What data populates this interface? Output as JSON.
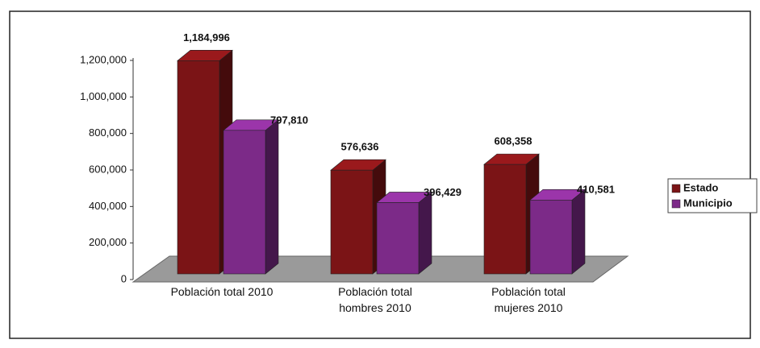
{
  "chart_data": {
    "type": "bar3d",
    "categories": [
      "Población total 2010",
      "Población total hombres 2010",
      "Población total mujeres 2010"
    ],
    "series": [
      {
        "name": "Estado",
        "color": "#7b1416",
        "values": [
          1184996,
          576636,
          608358
        ],
        "value_labels": [
          "1,184,996",
          "576,636",
          "608,358"
        ]
      },
      {
        "name": "Municipio",
        "color": "#7c2a88",
        "values": [
          797810,
          396429,
          410581
        ],
        "value_labels": [
          "797,810",
          "396,429",
          "410,581"
        ]
      }
    ],
    "ylim": [
      0,
      1200000
    ],
    "yticks": [
      0,
      {
        "value": 200000,
        "label": "200,000"
      },
      {
        "value": 400000,
        "label": "400,000"
      },
      {
        "value": 600000,
        "label": "600,000"
      },
      {
        "value": 800000,
        "label": "800,000"
      },
      {
        "value": 1000000,
        "label": "1,000,000"
      },
      {
        "value": 1200000,
        "label": "1,200,000"
      }
    ],
    "legend": "right"
  }
}
